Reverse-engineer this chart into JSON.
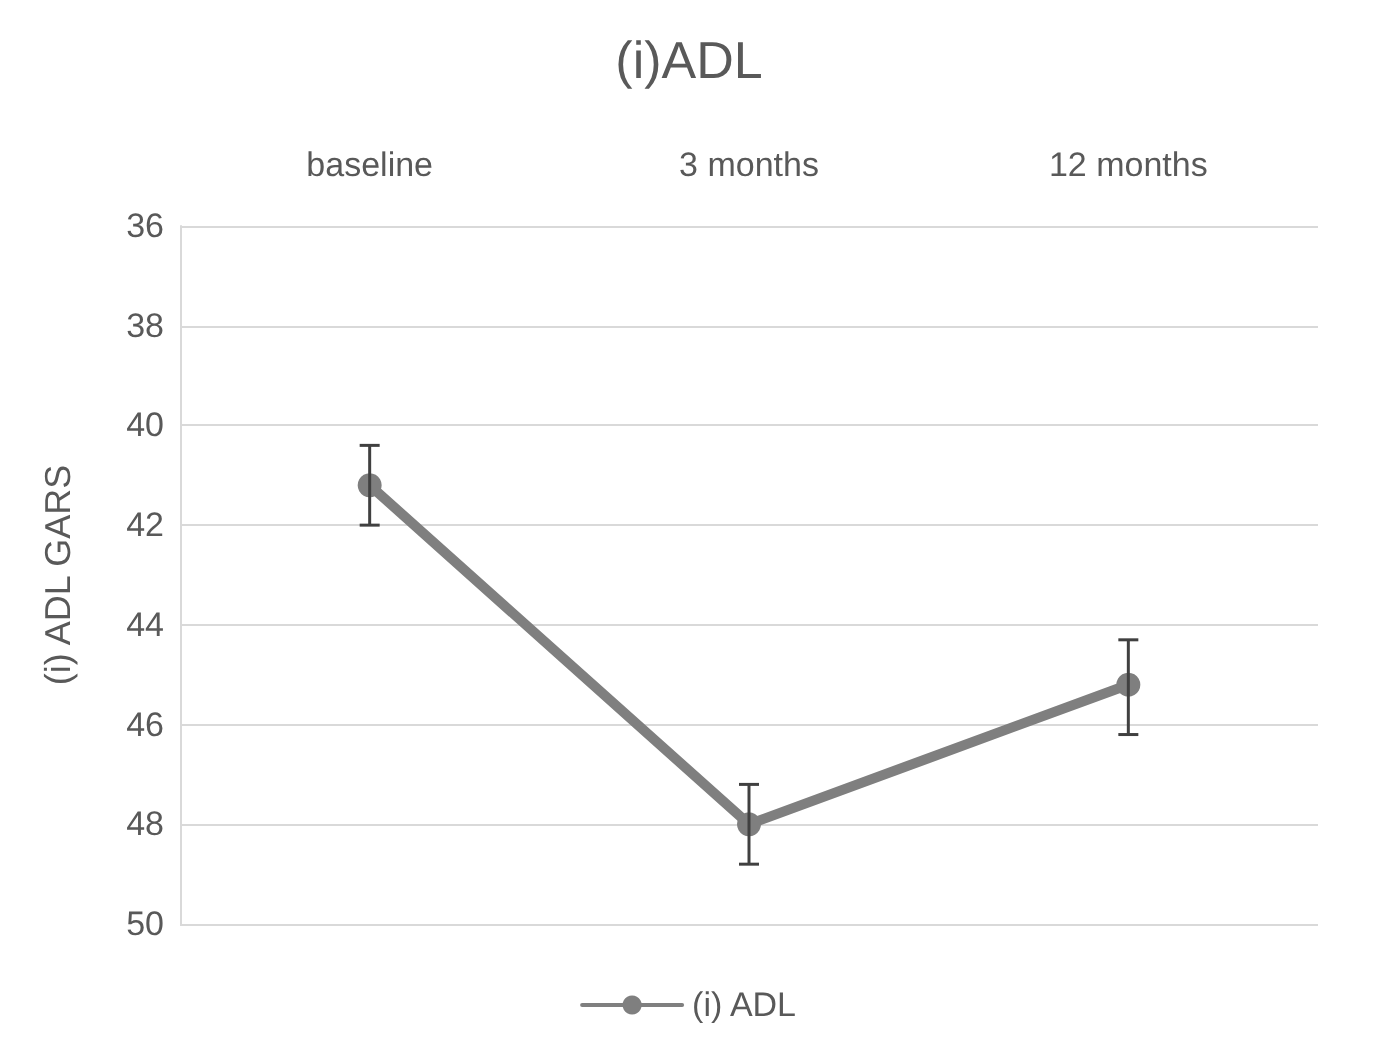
{
  "chart_data": {
    "type": "line",
    "title": "(i)ADL",
    "ylabel": "(i) ADL GARS",
    "categories": [
      "baseline",
      "3 months",
      "12 months"
    ],
    "series": [
      {
        "name": "(i) ADL",
        "color": "#7f7f7f",
        "values": [
          41.2,
          48.0,
          45.2
        ],
        "errors": [
          [
            40.4,
            42.0
          ],
          [
            47.2,
            48.8
          ],
          [
            44.3,
            46.2
          ]
        ]
      }
    ],
    "ylim": [
      50,
      36
    ],
    "yticks": [
      36,
      38,
      40,
      42,
      44,
      46,
      48,
      50
    ],
    "grid": "y",
    "legend": "bottom",
    "marker": "circle",
    "line_style": "solid"
  }
}
